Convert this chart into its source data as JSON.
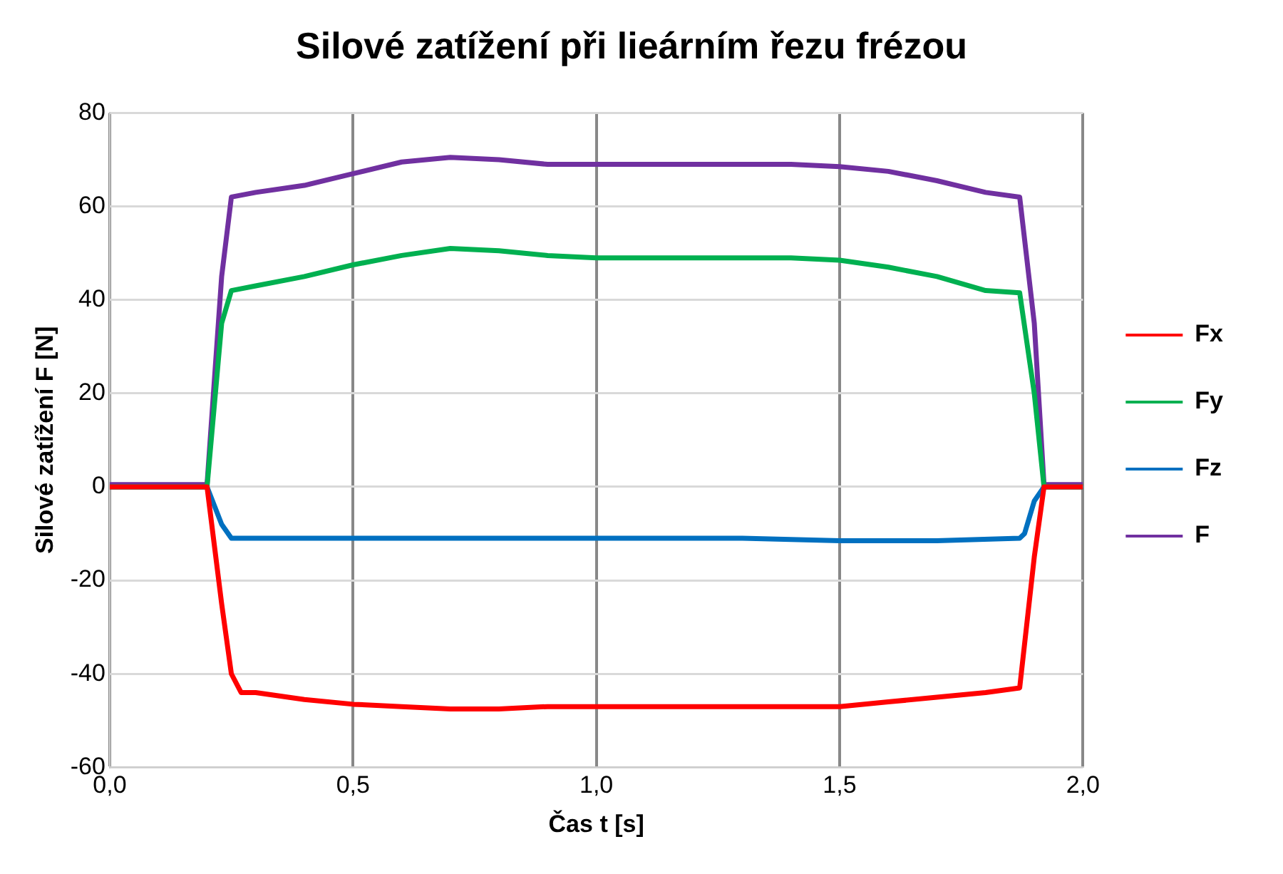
{
  "chart_data": {
    "type": "line",
    "title": "Silové zatížení při lieárním řezu frézou",
    "xlabel": "Čas t [s]",
    "ylabel": "Silové zatížení F [N]",
    "xlim": [
      0,
      2
    ],
    "xticks": [
      {
        "value": 0,
        "label": "0,0"
      },
      {
        "value": 0.5,
        "label": "0,5"
      },
      {
        "value": 1,
        "label": "1,0"
      },
      {
        "value": 1.5,
        "label": "1,5"
      },
      {
        "value": 2,
        "label": "2,0"
      }
    ],
    "ylim": [
      -60,
      80
    ],
    "yticks": [
      -60,
      -40,
      -20,
      0,
      20,
      40,
      60,
      80
    ],
    "grid": true,
    "legend": "right",
    "marker": "none",
    "line_style": "solid",
    "series": [
      {
        "name": "Fx",
        "color": "#ff0000",
        "x": [
          0,
          0.1,
          0.2,
          0.23,
          0.25,
          0.27,
          0.3,
          0.4,
          0.5,
          0.6,
          0.7,
          0.8,
          0.9,
          1.0,
          1.2,
          1.4,
          1.5,
          1.6,
          1.7,
          1.8,
          1.87,
          1.9,
          1.92,
          2.0
        ],
        "values": [
          0,
          0,
          0,
          -25,
          -40,
          -44,
          -44,
          -45.5,
          -46.5,
          -47,
          -47.5,
          -47.5,
          -47,
          -47,
          -47,
          -47,
          -47,
          -46,
          -45,
          -44,
          -43,
          -15,
          0,
          0
        ]
      },
      {
        "name": "Fy",
        "color": "#00b050",
        "x": [
          0,
          0.1,
          0.2,
          0.23,
          0.25,
          0.3,
          0.4,
          0.5,
          0.6,
          0.7,
          0.8,
          0.9,
          1.0,
          1.2,
          1.4,
          1.5,
          1.6,
          1.7,
          1.8,
          1.87,
          1.9,
          1.92,
          2.0
        ],
        "values": [
          0,
          0,
          0,
          35,
          42,
          43,
          45,
          47.5,
          49.5,
          51,
          50.5,
          49.5,
          49,
          49,
          49,
          48.5,
          47,
          45,
          42,
          41.5,
          20,
          0,
          0
        ]
      },
      {
        "name": "Fz",
        "color": "#0070c0",
        "x": [
          0,
          0.1,
          0.2,
          0.23,
          0.25,
          0.3,
          0.5,
          0.7,
          1.0,
          1.3,
          1.5,
          1.7,
          1.87,
          1.88,
          1.9,
          1.92,
          2.0
        ],
        "values": [
          0,
          0,
          0,
          -8,
          -11,
          -11,
          -11,
          -11,
          -11,
          -11,
          -11.5,
          -11.5,
          -11,
          -10,
          -3,
          0,
          0
        ]
      },
      {
        "name": "F",
        "color": "#7030a0",
        "x": [
          0,
          0.1,
          0.2,
          0.23,
          0.25,
          0.3,
          0.4,
          0.5,
          0.6,
          0.7,
          0.8,
          0.9,
          1.0,
          1.2,
          1.4,
          1.5,
          1.6,
          1.7,
          1.8,
          1.87,
          1.9,
          1.92,
          2.0
        ],
        "values": [
          0.5,
          0.5,
          0.5,
          45,
          62,
          63,
          64.5,
          67,
          69.5,
          70.5,
          70,
          69,
          69,
          69,
          69,
          68.5,
          67.5,
          65.5,
          63,
          62,
          35,
          0.5,
          0.5
        ]
      }
    ]
  }
}
